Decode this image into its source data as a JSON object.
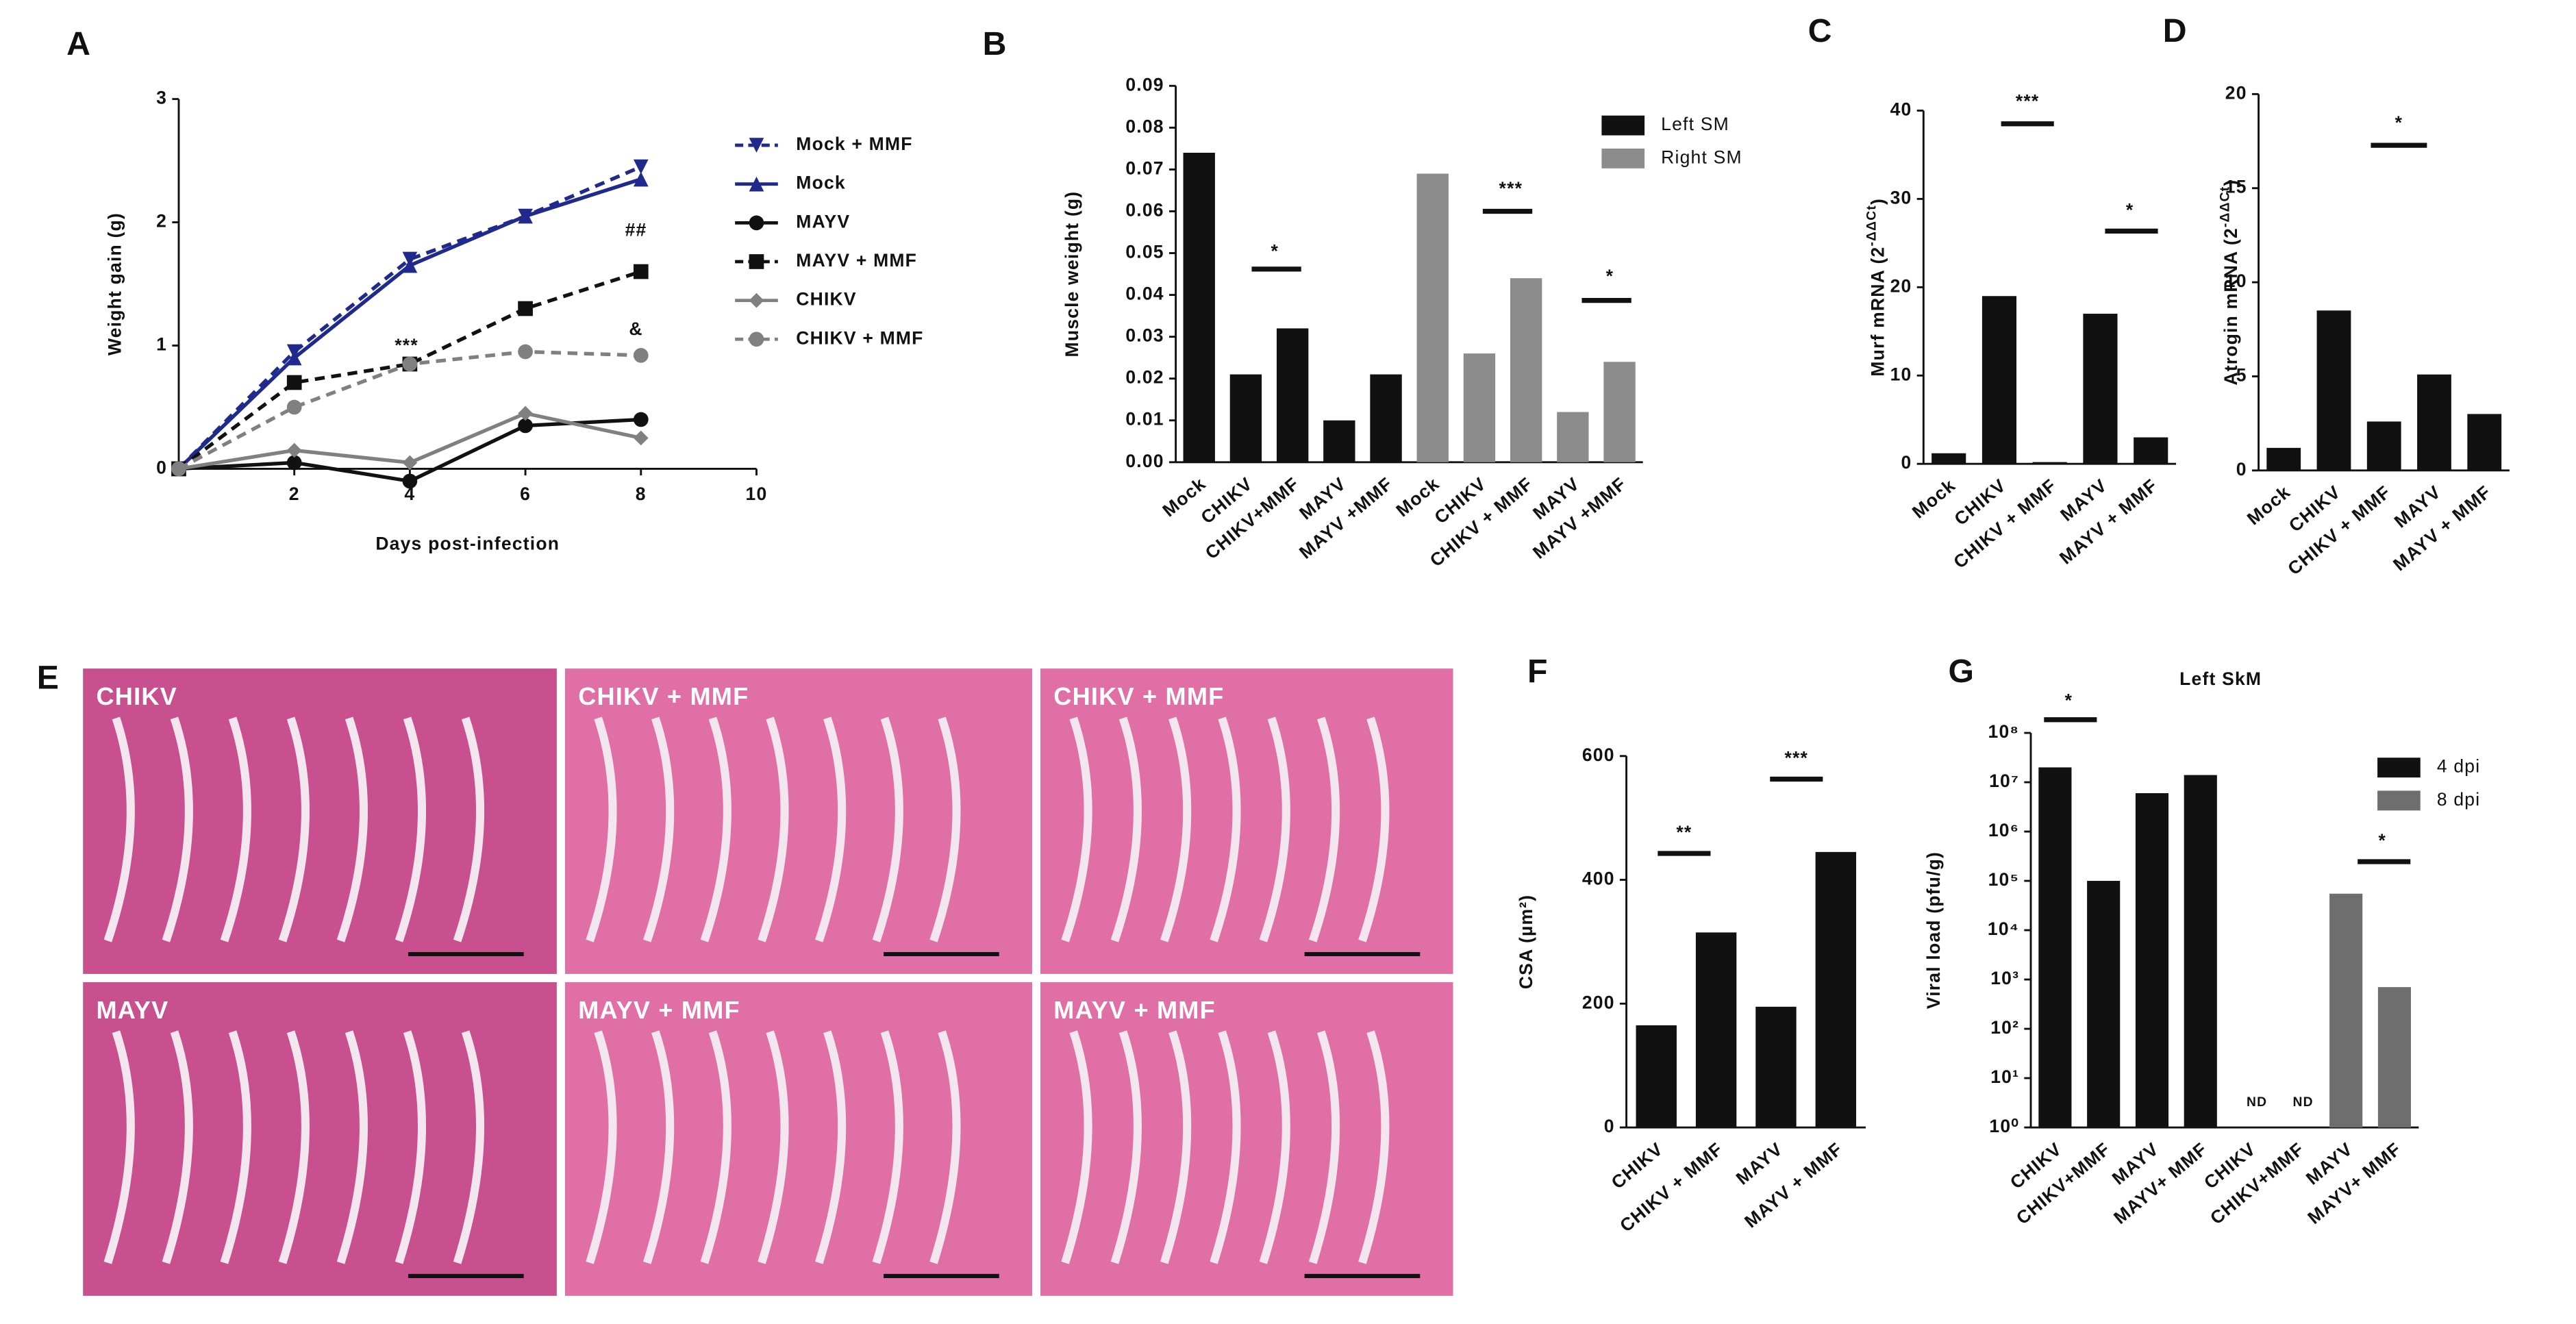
{
  "chart_data": [
    {
      "type": "line",
      "label": "A",
      "ylabel": "Weight gain (g)",
      "xlabel": "Days post-infection",
      "x": [
        0,
        2,
        4,
        6,
        8
      ],
      "xlim": [
        0,
        10
      ],
      "xticks": [
        2,
        4,
        6,
        8,
        10
      ],
      "ylim": [
        0,
        3
      ],
      "yticks": [
        0,
        1,
        2,
        3
      ],
      "series": [
        {
          "name": "Mock + MMF",
          "color": "#1f2a8c",
          "dash": true,
          "marker": "triangle-down",
          "values": [
            0,
            0.95,
            1.7,
            2.05,
            2.45
          ]
        },
        {
          "name": "Mock",
          "color": "#1f2a8c",
          "dash": false,
          "marker": "triangle",
          "values": [
            0,
            0.9,
            1.65,
            2.05,
            2.35
          ]
        },
        {
          "name": "MAYV",
          "color": "#111111",
          "dash": false,
          "marker": "circle",
          "values": [
            0,
            0.05,
            -0.1,
            0.35,
            0.4
          ]
        },
        {
          "name": "MAYV + MMF",
          "color": "#111111",
          "dash": true,
          "marker": "square",
          "values": [
            0,
            0.7,
            0.85,
            1.3,
            1.6
          ]
        },
        {
          "name": "CHIKV",
          "color": "#808080",
          "dash": false,
          "marker": "diamond",
          "values": [
            0,
            0.15,
            0.05,
            0.45,
            0.25
          ]
        },
        {
          "name": "CHIKV + MMF",
          "color": "#808080",
          "dash": true,
          "marker": "circle",
          "values": [
            0,
            0.5,
            0.85,
            0.95,
            0.92
          ]
        }
      ],
      "annotations": [
        "***",
        "##",
        "&"
      ]
    },
    {
      "type": "bar",
      "label": "B",
      "ylabel": "Muscle weight (g)",
      "categories": [
        "Mock",
        "CHIKV",
        "CHIKV+MMF",
        "MAYV",
        "MAYV +MMF",
        "Mock",
        "CHIKV",
        "CHIKV + MMF",
        "MAYV",
        "MAYV +MMF"
      ],
      "ylim": [
        0,
        0.09
      ],
      "yticks": [
        {
          "value": 0,
          "label": "0.00"
        },
        {
          "value": 0.01,
          "label": "0.01"
        },
        {
          "value": 0.02,
          "label": "0.02"
        },
        {
          "value": 0.03,
          "label": "0.03"
        },
        {
          "value": 0.04,
          "label": "0.04"
        },
        {
          "value": 0.05,
          "label": "0.05"
        },
        {
          "value": 0.06,
          "label": "0.06"
        },
        {
          "value": 0.07,
          "label": "0.07"
        },
        {
          "value": 0.08,
          "label": "0.08"
        },
        {
          "value": 0.09,
          "label": "0.09"
        }
      ],
      "series": [
        {
          "name": "Left SM",
          "color": "#111111",
          "values": [
            0.074,
            0.021,
            0.032,
            0.01,
            0.021,
            null,
            null,
            null,
            null,
            null
          ]
        },
        {
          "name": "Right SM",
          "color": "#8c8c8c",
          "values": [
            null,
            null,
            null,
            null,
            null,
            0.069,
            0.026,
            0.044,
            0.012,
            0.024
          ]
        }
      ],
      "annotations": [
        "*",
        "***",
        "*"
      ]
    },
    {
      "type": "bar",
      "label": "C",
      "ylabel": "Murf mRNA (2",
      "ylabel_sup": "-ΔΔCt",
      "ylabel_end": ")",
      "categories": [
        "Mock",
        "CHIKV",
        "CHIKV + MMF",
        "MAYV",
        "MAYV + MMF"
      ],
      "ylim": [
        0,
        40
      ],
      "yticks": [
        0,
        10,
        20,
        30,
        40
      ],
      "series": [
        {
          "color": "#111111",
          "values": [
            1.2,
            19,
            0.2,
            17,
            3
          ]
        }
      ],
      "annotations": [
        "***",
        "*"
      ]
    },
    {
      "type": "bar",
      "label": "D",
      "ylabel": "Atrogin mRNA (2",
      "ylabel_sup": "-ΔΔCt",
      "ylabel_end": ")",
      "categories": [
        "Mock",
        "CHIKV",
        "CHIKV + MMF",
        "MAYV",
        "MAYV + MMF"
      ],
      "ylim": [
        0,
        20
      ],
      "yticks": [
        0,
        5,
        10,
        15,
        20
      ],
      "series": [
        {
          "color": "#111111",
          "values": [
            1.2,
            8.5,
            2.6,
            5.1,
            3.0
          ]
        }
      ],
      "annotations": [
        "*"
      ]
    },
    {
      "type": "bar",
      "label": "F",
      "ylabel": "CSA (µm²)",
      "categories": [
        "CHIKV",
        "CHIKV + MMF",
        "MAYV",
        "MAYV + MMF"
      ],
      "ylim": [
        0,
        600
      ],
      "yticks": [
        0,
        200,
        400,
        600
      ],
      "series": [
        {
          "color": "#111111",
          "values": [
            165,
            315,
            195,
            445
          ]
        }
      ],
      "annotations": [
        "**",
        "***"
      ]
    },
    {
      "type": "bar",
      "label": "G",
      "title": "Left SkM",
      "ylabel": "Viral load (pfu/g)",
      "log": true,
      "categories": [
        "CHIKV",
        "CHIKV+MMF",
        "MAYV",
        "MAYV+ MMF",
        "CHIKV",
        "CHIKV+MMF",
        "MAYV",
        "MAYV+ MMF"
      ],
      "ylim": [
        1,
        100000000
      ],
      "yticks": [
        {
          "value": 1,
          "label": "10⁰"
        },
        {
          "value": 10,
          "label": "10¹"
        },
        {
          "value": 100,
          "label": "10²"
        },
        {
          "value": 1000,
          "label": "10³"
        },
        {
          "value": 10000,
          "label": "10⁴"
        },
        {
          "value": 100000,
          "label": "10⁵"
        },
        {
          "value": 1000000,
          "label": "10⁶"
        },
        {
          "value": 10000000,
          "label": "10⁷"
        },
        {
          "value": 100000000,
          "label": "10⁸"
        }
      ],
      "series": [
        {
          "name": "4 dpi",
          "color": "#111111",
          "values": [
            20000000,
            100000,
            6000000,
            14000000,
            null,
            null,
            null,
            null
          ]
        },
        {
          "name": "8 dpi",
          "color": "#6e6e6e",
          "values": [
            null,
            null,
            null,
            null,
            null,
            null,
            55000,
            700
          ]
        }
      ],
      "annotations": [
        "*",
        "*",
        "ND",
        "ND"
      ]
    }
  ],
  "panel_e": {
    "label": "E",
    "images": [
      "CHIKV",
      "CHIKV + MMF",
      "CHIKV + MMF",
      "MAYV",
      "MAYV + MMF",
      "MAYV + MMF"
    ]
  }
}
